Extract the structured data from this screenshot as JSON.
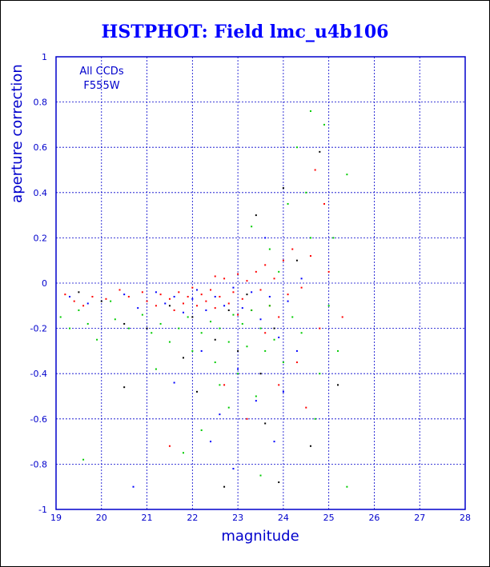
{
  "chart_data": {
    "type": "scatter",
    "title": "HSTPHOT: Field lmc_u4b106",
    "xlabel": "magnitude",
    "ylabel": "aperture correction",
    "xlim": [
      19,
      28
    ],
    "ylim": [
      -1,
      1
    ],
    "x_ticks": [
      19,
      20,
      21,
      22,
      23,
      24,
      25,
      26,
      27,
      28
    ],
    "y_ticks": [
      -1,
      -0.8,
      -0.6,
      -0.4,
      -0.2,
      0,
      0.2,
      0.4,
      0.6,
      0.8,
      1
    ],
    "x_tick_labels": [
      "19",
      "20",
      "21",
      "22",
      "23",
      "24",
      "25",
      "26",
      "27",
      "28"
    ],
    "y_tick_labels": [
      "-1",
      "-0.8",
      "-0.6",
      "-0.4",
      "-0.2",
      "0",
      "0.2",
      "0.4",
      "0.6",
      "0.8",
      "1"
    ],
    "grid": true,
    "annotations": [
      "All CCDs",
      "F555W"
    ],
    "colors": {
      "title": "#0000ff",
      "axis": "#0000cc",
      "grid": "#0000cc",
      "series_red": "#ff0000",
      "series_green": "#00cc00",
      "series_blue": "#0000ff",
      "series_black": "#000000"
    },
    "series": [
      {
        "color": "#ff0000",
        "points": [
          [
            19.2,
            -0.05
          ],
          [
            19.4,
            -0.08
          ],
          [
            19.6,
            -0.1
          ],
          [
            19.8,
            -0.06
          ],
          [
            20.1,
            -0.07
          ],
          [
            20.4,
            -0.03
          ],
          [
            20.6,
            -0.06
          ],
          [
            20.9,
            -0.04
          ],
          [
            21.0,
            -0.08
          ],
          [
            21.2,
            -0.1
          ],
          [
            21.3,
            -0.05
          ],
          [
            21.5,
            -0.07
          ],
          [
            21.6,
            -0.12
          ],
          [
            21.7,
            -0.04
          ],
          [
            21.8,
            -0.09
          ],
          [
            21.9,
            -0.06
          ],
          [
            22.0,
            -0.02
          ],
          [
            22.1,
            -0.1
          ],
          [
            22.2,
            -0.05
          ],
          [
            22.3,
            -0.08
          ],
          [
            22.4,
            -0.03
          ],
          [
            22.5,
            -0.11
          ],
          [
            22.6,
            -0.06
          ],
          [
            22.7,
            0.02
          ],
          [
            22.8,
            -0.09
          ],
          [
            22.9,
            -0.04
          ],
          [
            23.0,
            0.04
          ],
          [
            23.1,
            -0.07
          ],
          [
            23.2,
            0.01
          ],
          [
            23.3,
            -0.12
          ],
          [
            23.4,
            0.05
          ],
          [
            23.5,
            -0.03
          ],
          [
            23.6,
            0.08
          ],
          [
            23.7,
            -0.1
          ],
          [
            23.8,
            0.02
          ],
          [
            23.9,
            -0.15
          ],
          [
            24.0,
            0.1
          ],
          [
            24.1,
            -0.05
          ],
          [
            24.2,
            0.15
          ],
          [
            24.4,
            -0.02
          ],
          [
            24.6,
            0.12
          ],
          [
            24.8,
            -0.2
          ],
          [
            25.0,
            0.05
          ],
          [
            25.3,
            -0.15
          ],
          [
            24.3,
            -0.35
          ],
          [
            23.9,
            -0.45
          ],
          [
            24.5,
            -0.55
          ],
          [
            23.2,
            -0.6
          ],
          [
            22.7,
            -0.45
          ],
          [
            21.5,
            -0.72
          ],
          [
            24.9,
            0.35
          ],
          [
            24.7,
            0.5
          ],
          [
            22.5,
            0.03
          ],
          [
            23.0,
            -0.14
          ],
          [
            23.6,
            -0.22
          ]
        ]
      },
      {
        "color": "#00cc00",
        "points": [
          [
            19.1,
            -0.15
          ],
          [
            19.3,
            -0.2
          ],
          [
            19.5,
            -0.12
          ],
          [
            19.7,
            -0.18
          ],
          [
            19.9,
            -0.25
          ],
          [
            20.3,
            -0.16
          ],
          [
            20.6,
            -0.2
          ],
          [
            20.9,
            -0.14
          ],
          [
            21.1,
            -0.22
          ],
          [
            21.3,
            -0.18
          ],
          [
            21.5,
            -0.26
          ],
          [
            21.7,
            -0.2
          ],
          [
            21.9,
            -0.15
          ],
          [
            22.0,
            -0.3
          ],
          [
            22.2,
            -0.22
          ],
          [
            22.4,
            -0.17
          ],
          [
            22.5,
            -0.35
          ],
          [
            22.6,
            -0.2
          ],
          [
            22.8,
            -0.26
          ],
          [
            22.9,
            -0.14
          ],
          [
            23.0,
            -0.4
          ],
          [
            23.1,
            -0.18
          ],
          [
            23.2,
            -0.28
          ],
          [
            23.3,
            -0.12
          ],
          [
            23.4,
            -0.5
          ],
          [
            23.5,
            -0.2
          ],
          [
            23.6,
            -0.3
          ],
          [
            23.7,
            -0.1
          ],
          [
            23.8,
            -0.25
          ],
          [
            23.9,
            0.05
          ],
          [
            24.0,
            -0.35
          ],
          [
            24.2,
            -0.15
          ],
          [
            24.4,
            -0.22
          ],
          [
            24.6,
            0.2
          ],
          [
            24.8,
            -0.4
          ],
          [
            25.0,
            -0.1
          ],
          [
            25.2,
            -0.3
          ],
          [
            25.4,
            0.48
          ],
          [
            25.4,
            -0.9
          ],
          [
            24.6,
            0.76
          ],
          [
            24.9,
            0.7
          ],
          [
            24.3,
            0.6
          ],
          [
            24.1,
            0.35
          ],
          [
            22.8,
            -0.55
          ],
          [
            22.2,
            -0.65
          ],
          [
            21.8,
            -0.75
          ],
          [
            23.5,
            -0.85
          ],
          [
            24.7,
            -0.6
          ],
          [
            19.6,
            -0.78
          ],
          [
            23.3,
            0.25
          ],
          [
            23.7,
            0.15
          ],
          [
            24.5,
            0.4
          ],
          [
            22.6,
            -0.45
          ],
          [
            21.2,
            -0.38
          ],
          [
            20.2,
            -0.08
          ],
          [
            25.1,
            0.2
          ]
        ]
      },
      {
        "color": "#0000ff",
        "points": [
          [
            19.3,
            -0.06
          ],
          [
            19.7,
            -0.09
          ],
          [
            20.5,
            -0.05
          ],
          [
            20.8,
            -0.11
          ],
          [
            21.2,
            -0.04
          ],
          [
            21.4,
            -0.09
          ],
          [
            21.6,
            -0.06
          ],
          [
            21.8,
            -0.13
          ],
          [
            22.0,
            -0.07
          ],
          [
            22.1,
            -0.03
          ],
          [
            22.3,
            -0.12
          ],
          [
            22.5,
            -0.06
          ],
          [
            22.7,
            -0.1
          ],
          [
            22.9,
            -0.02
          ],
          [
            23.1,
            -0.11
          ],
          [
            23.3,
            -0.04
          ],
          [
            23.5,
            -0.16
          ],
          [
            23.7,
            -0.06
          ],
          [
            23.9,
            -0.24
          ],
          [
            24.1,
            -0.08
          ],
          [
            24.3,
            -0.3
          ],
          [
            22.2,
            -0.3
          ],
          [
            22.6,
            -0.58
          ],
          [
            23.8,
            -0.7
          ],
          [
            22.9,
            -0.82
          ],
          [
            23.4,
            -0.52
          ],
          [
            21.6,
            -0.44
          ],
          [
            24.4,
            0.02
          ],
          [
            20.7,
            -0.9
          ],
          [
            22.4,
            -0.7
          ],
          [
            23.0,
            -0.38
          ],
          [
            23.6,
            0.2
          ],
          [
            24.0,
            -0.48
          ]
        ]
      },
      {
        "color": "#000000",
        "points": [
          [
            19.5,
            -0.04
          ],
          [
            20.0,
            -0.08
          ],
          [
            20.5,
            -0.18
          ],
          [
            21.0,
            -0.2
          ],
          [
            21.5,
            -0.1
          ],
          [
            22.0,
            -0.15
          ],
          [
            22.5,
            -0.25
          ],
          [
            22.8,
            -0.12
          ],
          [
            23.0,
            -0.3
          ],
          [
            23.2,
            -0.05
          ],
          [
            23.5,
            -0.4
          ],
          [
            23.8,
            -0.2
          ],
          [
            24.0,
            0.42
          ],
          [
            24.3,
            0.1
          ],
          [
            24.8,
            0.58
          ],
          [
            25.2,
            -0.45
          ],
          [
            22.1,
            -0.48
          ],
          [
            23.6,
            -0.62
          ],
          [
            22.7,
            -0.9
          ],
          [
            23.9,
            -0.88
          ],
          [
            20.5,
            -0.46
          ],
          [
            24.6,
            -0.72
          ],
          [
            23.4,
            0.3
          ],
          [
            21.8,
            -0.33
          ]
        ]
      }
    ]
  }
}
